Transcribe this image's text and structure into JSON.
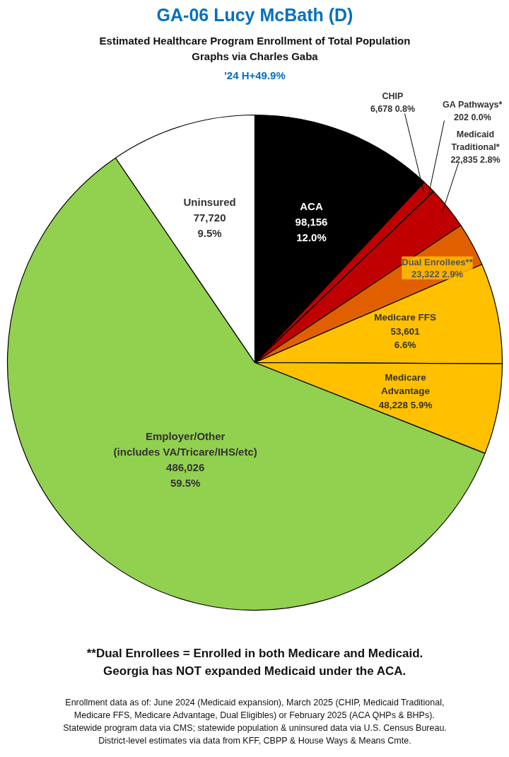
{
  "chart_data": {
    "type": "pie",
    "title": "GA-06 Lucy McBath (D)",
    "subtitle": "Estimated Healthcare Program Enrollment of Total Population\nGraphs via Charles Gaba",
    "categories": [
      "ACA",
      "CHIP",
      "GA Pathways*",
      "Medicaid\nTraditional*",
      "Dual Enrollees**",
      "Medicare FFS",
      "Medicare\nAdvantage",
      "Employer/Other\n(includes VA/Tricare/IHS/etc)",
      "Uninsured"
    ],
    "values": [
      98156,
      6678,
      202,
      22835,
      23322,
      53601,
      48228,
      486026,
      77720
    ],
    "value_labels": [
      "98,156\n12.0%",
      "6,678 0.8%",
      "202 0.0%",
      "22,835 2.8%",
      "23,322 2.9%",
      "53,601\n6.6%",
      "48,228 5.9%",
      "486,026\n59.5%",
      "77,720\n9.5%"
    ],
    "colors": [
      "#000000",
      "#c00000",
      "#800000",
      "#c00000",
      "#e06000",
      "#ffc000",
      "#ffc000",
      "#92d050",
      "#ffffff"
    ],
    "annotations": [
      "'24 H+49.9%",
      "**Dual Enrollees = Enrolled in both Medicare and Medicaid.\nGeorgia has NOT expanded Medicaid under the ACA.",
      "Enrollment data as of: June 2024 (Medicaid expansion), March 2025 (CHIP, Medicaid Traditional,\nMedicare FFS, Medicare Advantage, Dual Eligibles) or February 2025 (ACA QHPs & BHPs).\nStatewide program data via CMS; statewide population & uninsured data via U.S. Census Bureau.\nDistrict-level estimates via data from KFF, CBPP & House Ways & Means Cmte."
    ]
  }
}
